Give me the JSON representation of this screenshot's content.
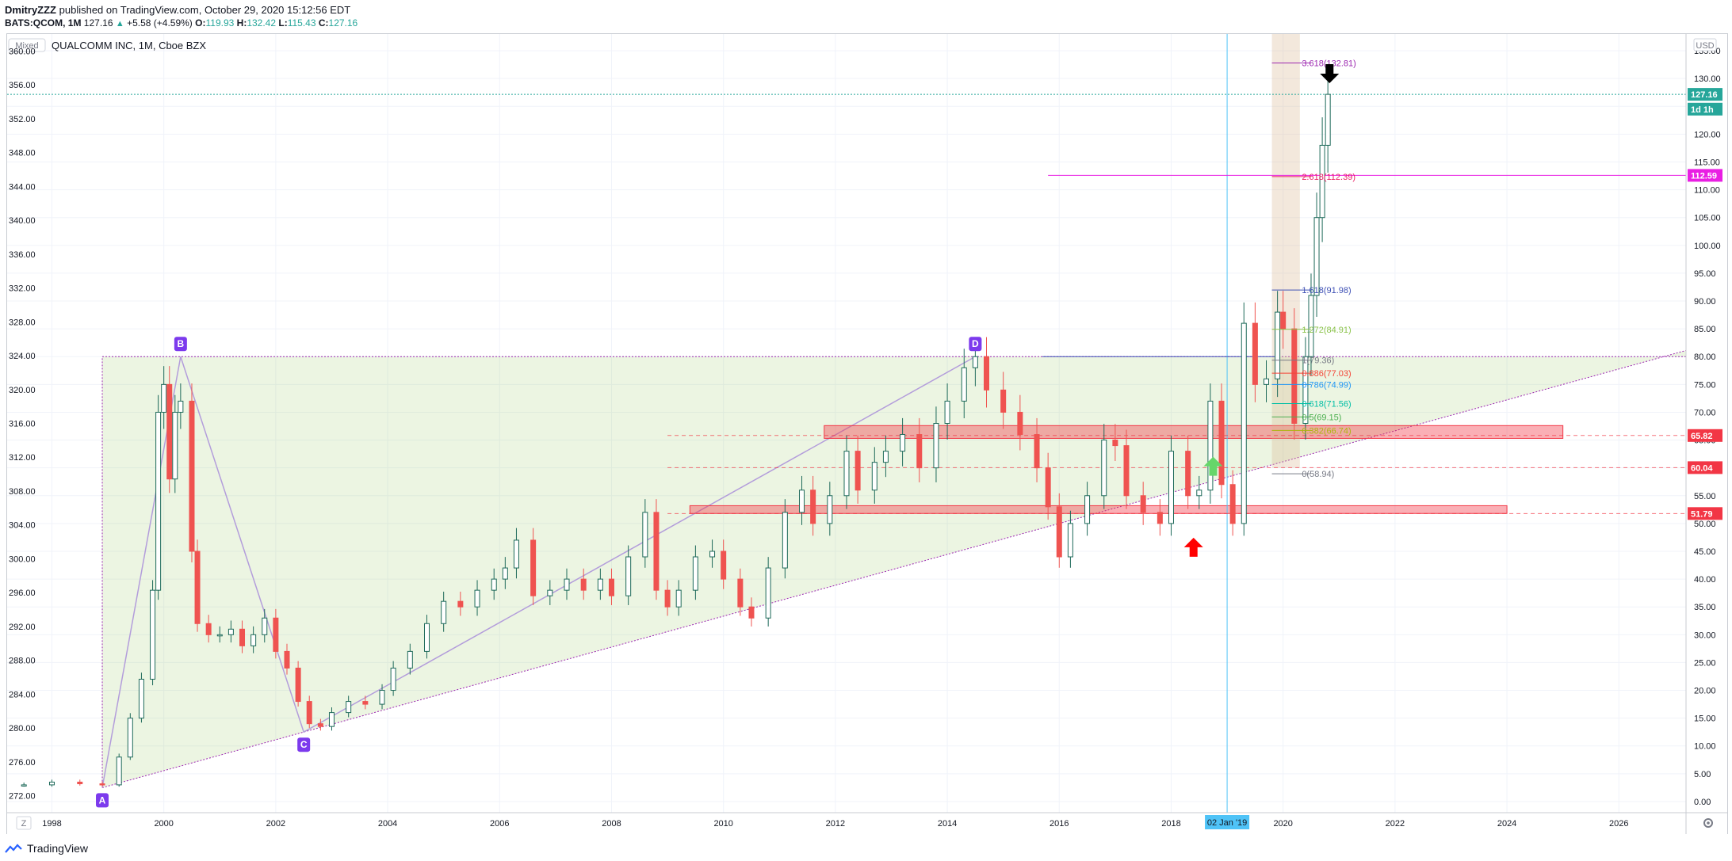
{
  "header": {
    "author": "DmitryZZZ",
    "published_text": "published on TradingView.com, October 29, 2020 15:12:56 EDT",
    "symbol": "BATS:QCOM, 1M",
    "last": "127.16",
    "change": "+5.58 (+4.59%)",
    "o_label": "O:",
    "o_value": "119.93",
    "h_label": "H:",
    "h_value": "132.42",
    "l_label": "L:",
    "l_value": "115.43",
    "c_label": "C:",
    "c_value": "127.16"
  },
  "chart": {
    "mixed_button": "Mixed",
    "title": "QUALCOMM INC, 1M, Cboe BZX",
    "currency": "USD",
    "z_button": "Z",
    "settings_icon": "gear-icon"
  },
  "footer": {
    "brand": "TradingView",
    "logo_icon": "tradingview-logo-icon"
  },
  "chart_data": {
    "type": "candlestick",
    "title": "QUALCOMM INC, 1M, Cboe BZX",
    "right_axis": {
      "label": "USD",
      "range": [
        -2,
        138
      ],
      "ticks": [
        "0.00",
        "5.00",
        "10.00",
        "15.00",
        "20.00",
        "25.00",
        "30.00",
        "35.00",
        "40.00",
        "45.00",
        "50.00",
        "55.00",
        "60.00",
        "65.00",
        "70.00",
        "75.00",
        "80.00",
        "85.00",
        "90.00",
        "95.00",
        "100.00",
        "105.00",
        "110.00",
        "115.00",
        "120.00",
        "125.00",
        "130.00",
        "135.00"
      ]
    },
    "left_axis": {
      "range": [
        270,
        362
      ],
      "ticks": [
        "272.00",
        "276.00",
        "280.00",
        "284.00",
        "288.00",
        "292.00",
        "296.00",
        "300.00",
        "304.00",
        "308.00",
        "312.00",
        "316.00",
        "320.00",
        "324.00",
        "328.00",
        "332.00",
        "336.00",
        "340.00",
        "344.00",
        "348.00",
        "352.00",
        "356.00",
        "360.00"
      ]
    },
    "x_axis": {
      "range": [
        1997.2,
        2027.2
      ],
      "ticks": [
        "1998",
        "2000",
        "2002",
        "2004",
        "2006",
        "2008",
        "2010",
        "2012",
        "2014",
        "2016",
        "2018",
        "2020",
        "2022",
        "2024",
        "2026"
      ]
    },
    "price_labels": [
      {
        "text": "127.16",
        "value": 127.16,
        "color": "#26a69a"
      },
      {
        "text": "1d 1h",
        "value": 124.5,
        "color": "#26a69a"
      },
      {
        "text": "112.59",
        "value": 112.59,
        "color": "#e91ee3"
      },
      {
        "text": "65.82",
        "value": 65.82,
        "color": "#f23645"
      },
      {
        "text": "60.04",
        "value": 60.04,
        "color": "#f23645"
      },
      {
        "text": "51.79",
        "value": 51.79,
        "color": "#f23645"
      }
    ],
    "date_label": "02 Jan '19",
    "date_label_year": 2019.0,
    "fib_levels": [
      {
        "text": "3.618(132.81)",
        "value": 132.81,
        "color": "#9c27b0"
      },
      {
        "text": "2.618(112.39)",
        "value": 112.39,
        "color": "#e91e63"
      },
      {
        "text": "1.618(91.98)",
        "value": 91.98,
        "color": "#3f51b5"
      },
      {
        "text": "1.272(84.91)",
        "value": 84.91,
        "color": "#8bc34a"
      },
      {
        "text": "1(79.36)",
        "value": 79.36,
        "color": "#787b86"
      },
      {
        "text": "0.886(77.03)",
        "value": 77.03,
        "color": "#f44336"
      },
      {
        "text": "0.786(74.99)",
        "value": 74.99,
        "color": "#2196f3"
      },
      {
        "text": "0.618(71.56)",
        "value": 71.56,
        "color": "#00bfa5"
      },
      {
        "text": "0.5(69.15)",
        "value": 69.15,
        "color": "#4caf50"
      },
      {
        "text": "0.382(66.74)",
        "value": 66.74,
        "color": "#aeb40f"
      },
      {
        "text": "0(58.94)",
        "value": 58.94,
        "color": "#787b86"
      }
    ],
    "pattern_points": [
      {
        "label": "A",
        "year": 1998.9,
        "price": 2.5
      },
      {
        "label": "B",
        "year": 2000.3,
        "price": 80
      },
      {
        "label": "C",
        "year": 2002.5,
        "price": 12.5
      },
      {
        "label": "D",
        "year": 2014.5,
        "price": 80
      }
    ],
    "zones": [
      {
        "name": "resistance-zone",
        "year_from": 2011.8,
        "year_to": 2025.0,
        "price_from": 65.3,
        "price_to": 67.6
      },
      {
        "name": "support-zone",
        "year_from": 2009.4,
        "year_to": 2024.0,
        "price_from": 51.8,
        "price_to": 53.2
      }
    ],
    "candles_monthly_close": [
      [
        1997.5,
        3.0
      ],
      [
        1998.0,
        3.5
      ],
      [
        1998.5,
        3.2
      ],
      [
        1998.9,
        3.0
      ],
      [
        1999.2,
        8
      ],
      [
        1999.4,
        15
      ],
      [
        1999.6,
        22
      ],
      [
        1999.8,
        38
      ],
      [
        1999.9,
        70
      ],
      [
        2000.0,
        75
      ],
      [
        2000.1,
        58
      ],
      [
        2000.2,
        70
      ],
      [
        2000.3,
        72
      ],
      [
        2000.5,
        45
      ],
      [
        2000.6,
        32
      ],
      [
        2000.8,
        30
      ],
      [
        2001.0,
        30
      ],
      [
        2001.2,
        31
      ],
      [
        2001.4,
        28
      ],
      [
        2001.6,
        30
      ],
      [
        2001.8,
        33
      ],
      [
        2002.0,
        27
      ],
      [
        2002.2,
        24
      ],
      [
        2002.4,
        18
      ],
      [
        2002.6,
        14
      ],
      [
        2002.8,
        13.5
      ],
      [
        2003.0,
        16
      ],
      [
        2003.3,
        18
      ],
      [
        2003.6,
        17.5
      ],
      [
        2003.9,
        20
      ],
      [
        2004.1,
        24
      ],
      [
        2004.4,
        27
      ],
      [
        2004.7,
        32
      ],
      [
        2005.0,
        36
      ],
      [
        2005.3,
        35
      ],
      [
        2005.6,
        38
      ],
      [
        2005.9,
        40
      ],
      [
        2006.1,
        42
      ],
      [
        2006.3,
        47
      ],
      [
        2006.6,
        37
      ],
      [
        2006.9,
        38
      ],
      [
        2007.2,
        40
      ],
      [
        2007.5,
        38
      ],
      [
        2007.8,
        40
      ],
      [
        2008.0,
        37
      ],
      [
        2008.3,
        44
      ],
      [
        2008.6,
        52
      ],
      [
        2008.8,
        38
      ],
      [
        2009.0,
        35
      ],
      [
        2009.2,
        38
      ],
      [
        2009.5,
        44
      ],
      [
        2009.8,
        45
      ],
      [
        2010.0,
        40
      ],
      [
        2010.3,
        35
      ],
      [
        2010.5,
        33
      ],
      [
        2010.8,
        42
      ],
      [
        2011.1,
        52
      ],
      [
        2011.4,
        56
      ],
      [
        2011.6,
        50
      ],
      [
        2011.9,
        55
      ],
      [
        2012.2,
        63
      ],
      [
        2012.4,
        56
      ],
      [
        2012.7,
        61
      ],
      [
        2012.9,
        63
      ],
      [
        2013.2,
        66
      ],
      [
        2013.5,
        60
      ],
      [
        2013.8,
        68
      ],
      [
        2014.0,
        72
      ],
      [
        2014.3,
        78
      ],
      [
        2014.5,
        80
      ],
      [
        2014.7,
        74
      ],
      [
        2015.0,
        70
      ],
      [
        2015.3,
        66
      ],
      [
        2015.6,
        60
      ],
      [
        2015.8,
        53
      ],
      [
        2016.0,
        44
      ],
      [
        2016.2,
        50
      ],
      [
        2016.5,
        55
      ],
      [
        2016.8,
        65
      ],
      [
        2017.0,
        64
      ],
      [
        2017.2,
        55
      ],
      [
        2017.5,
        52
      ],
      [
        2017.8,
        50
      ],
      [
        2018.0,
        63
      ],
      [
        2018.3,
        55
      ],
      [
        2018.5,
        56
      ],
      [
        2018.7,
        72
      ],
      [
        2018.9,
        57
      ],
      [
        2019.1,
        50
      ],
      [
        2019.3,
        86
      ],
      [
        2019.5,
        75
      ],
      [
        2019.7,
        76
      ],
      [
        2019.9,
        88
      ],
      [
        2020.0,
        85
      ],
      [
        2020.2,
        68
      ],
      [
        2020.4,
        80
      ],
      [
        2020.5,
        91
      ],
      [
        2020.6,
        105
      ],
      [
        2020.7,
        118
      ],
      [
        2020.8,
        127.16
      ]
    ]
  }
}
